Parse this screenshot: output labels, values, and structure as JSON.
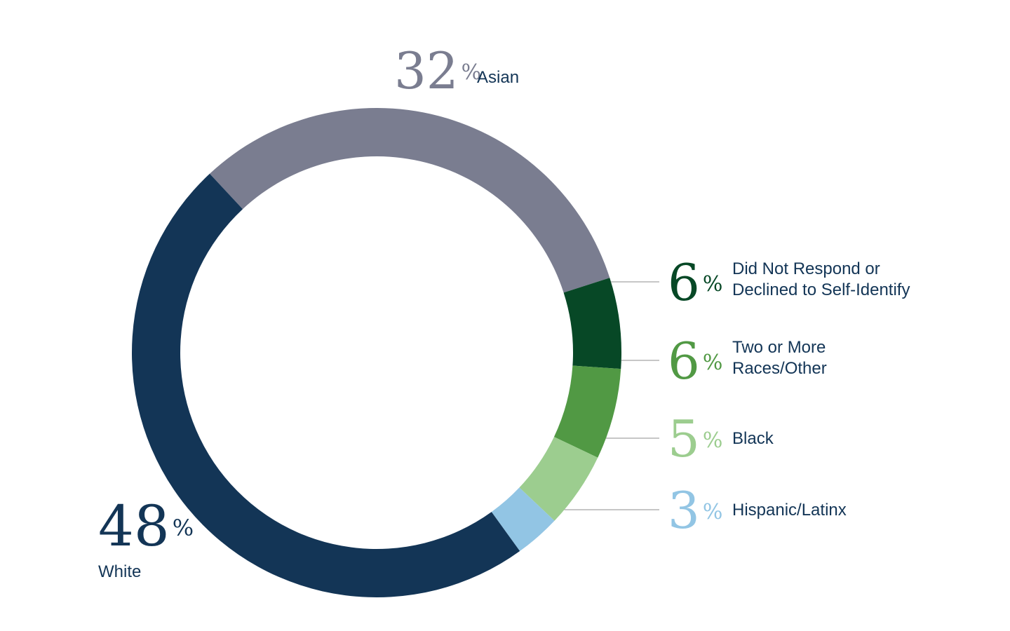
{
  "chart_data": {
    "type": "pie",
    "variant": "donut",
    "unit": "%",
    "slices": [
      {
        "label": "Asian",
        "value": 32,
        "color": "#7a7d90"
      },
      {
        "label": "Did Not Respond or Declined to Self-Identify",
        "label_lines": [
          "Did Not Respond or",
          "Declined to Self-Identify"
        ],
        "value": 6,
        "color": "#074826"
      },
      {
        "label": "Two or More Races/Other",
        "label_lines": [
          "Two or More",
          "Races/Other"
        ],
        "value": 6,
        "color": "#519944"
      },
      {
        "label": "Black",
        "value": 5,
        "color": "#9ccd8f"
      },
      {
        "label": "Hispanic/Latinx",
        "value": 3,
        "color": "#92c5e4"
      },
      {
        "label": "White",
        "value": 48,
        "color": "#133556"
      }
    ],
    "text_color": "#133556",
    "leader_color": "#8c8c8c"
  }
}
